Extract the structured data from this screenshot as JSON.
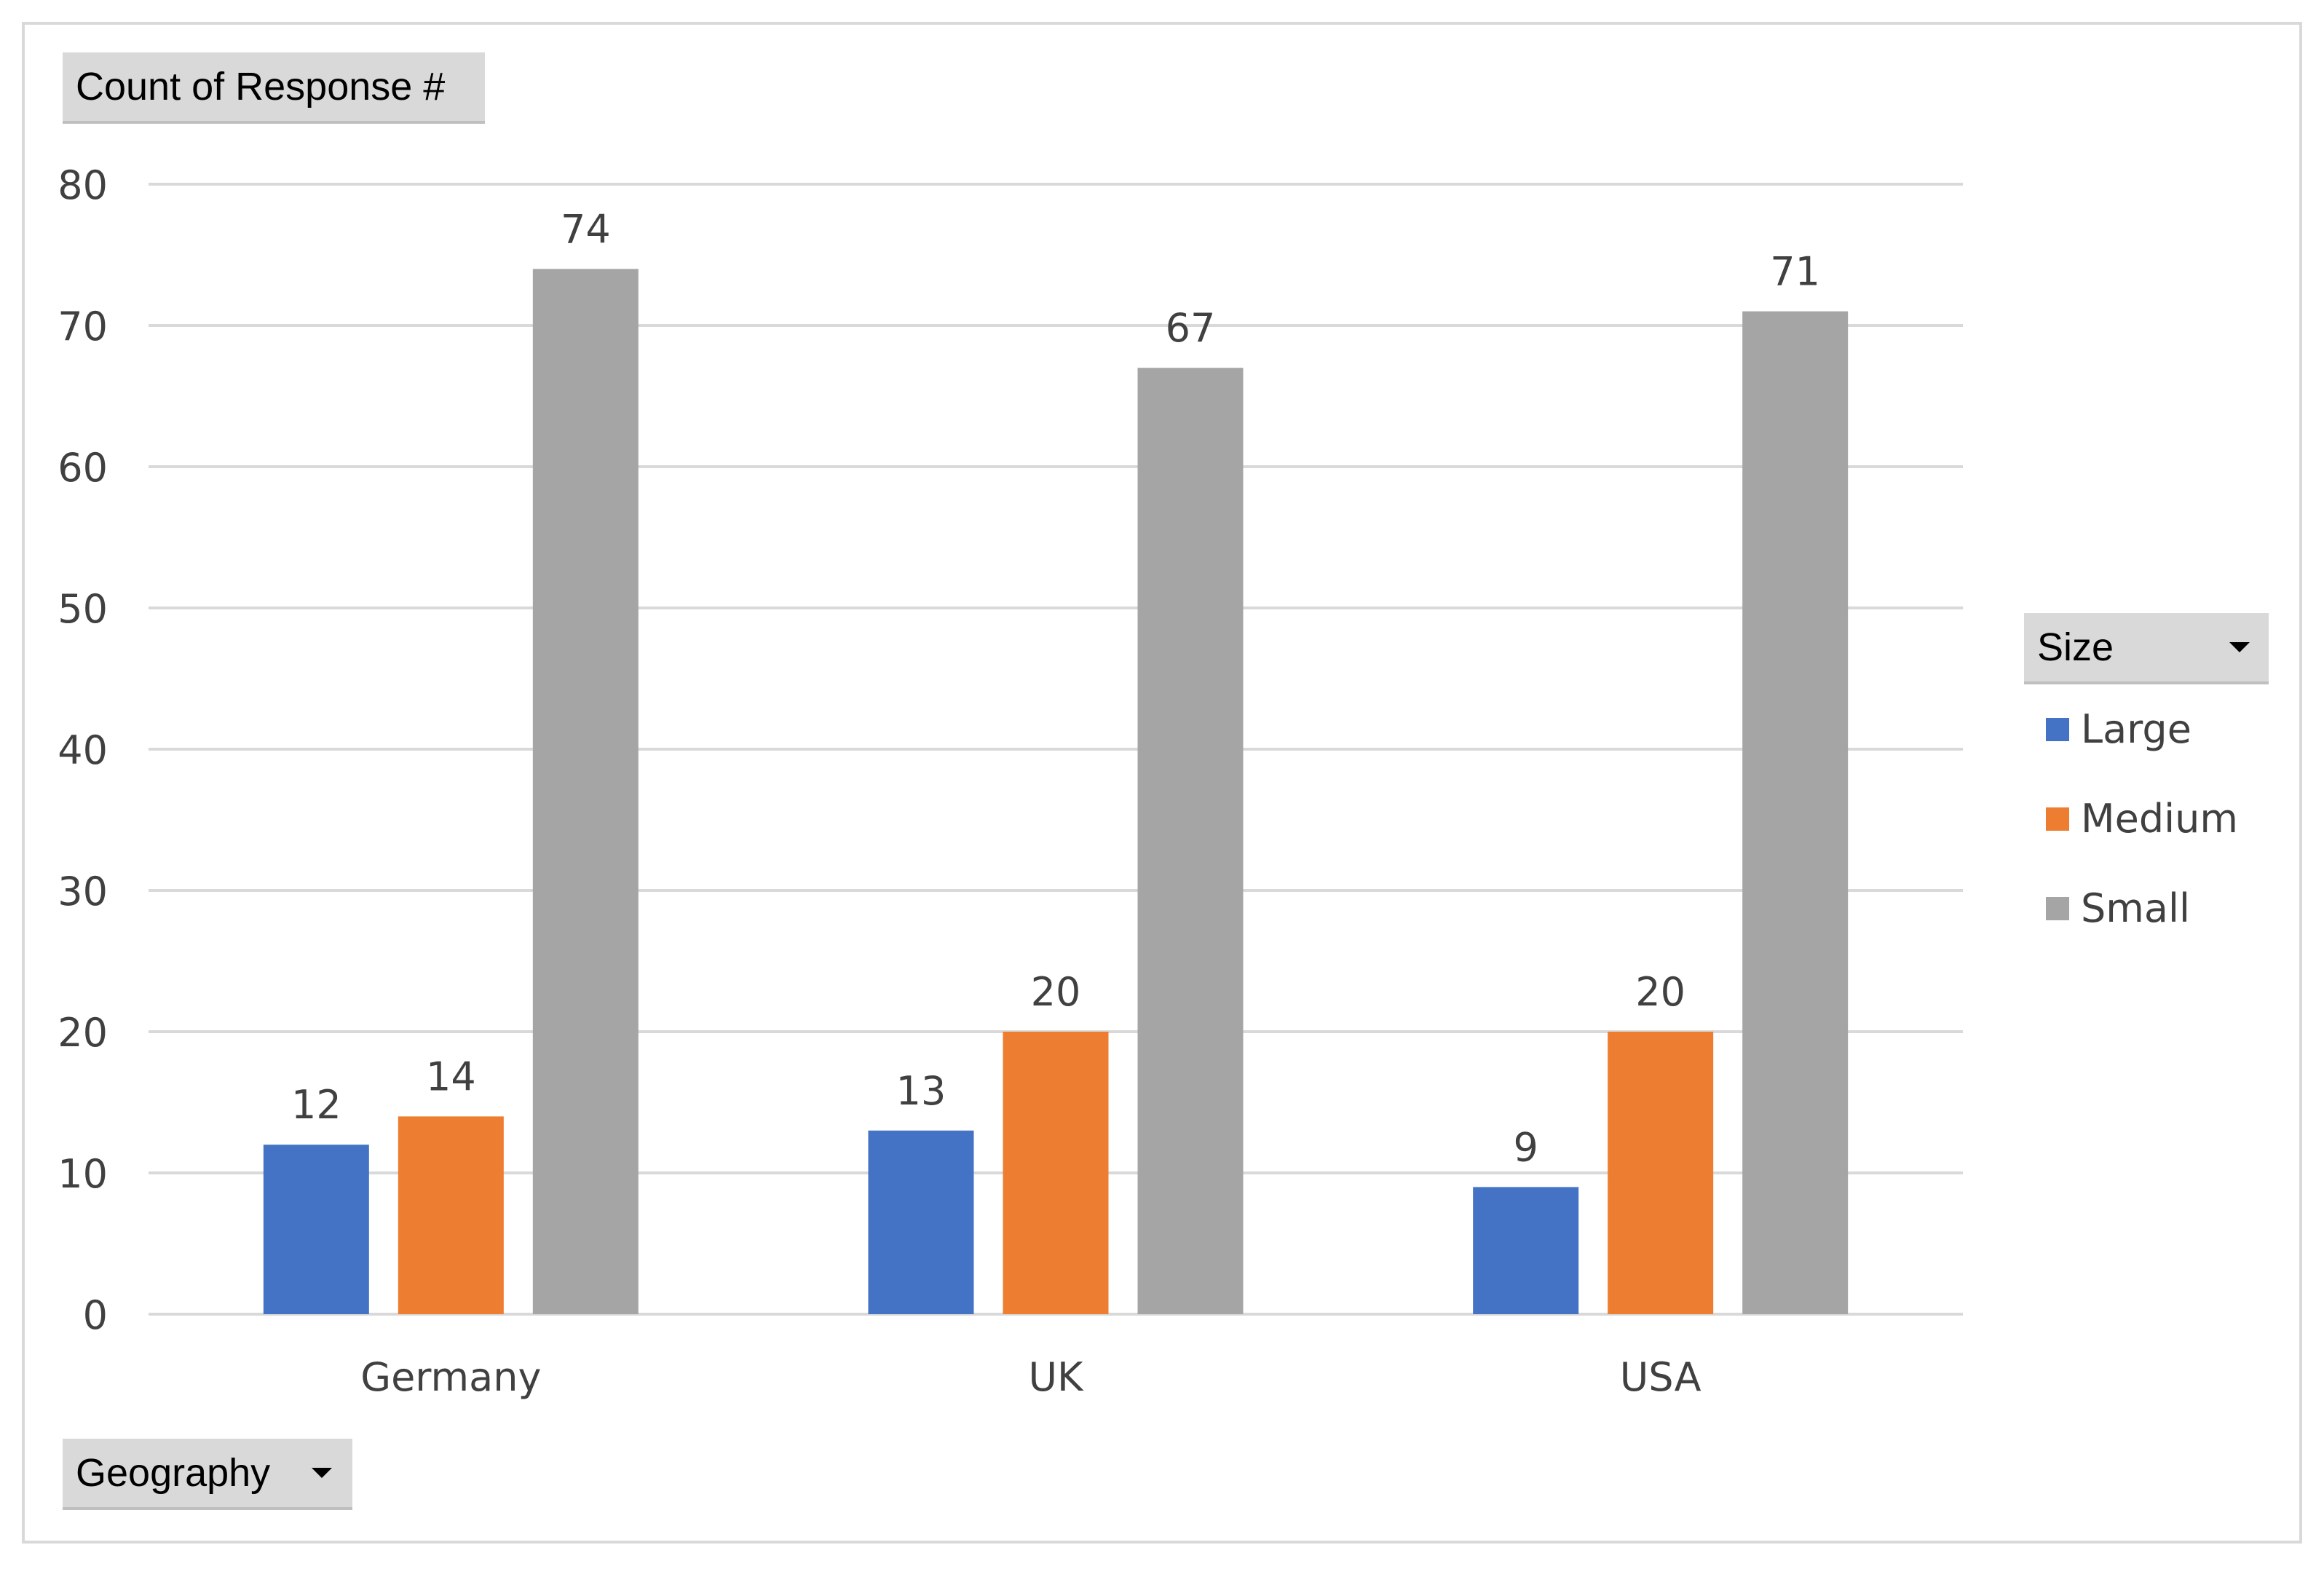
{
  "chart_data": {
    "type": "bar",
    "categories": [
      "Germany",
      "UK",
      "USA"
    ],
    "series": [
      {
        "name": "Large",
        "values": [
          12,
          13,
          9
        ],
        "color": "#4472C4"
      },
      {
        "name": "Medium",
        "values": [
          14,
          20,
          20
        ],
        "color": "#ED7D31"
      },
      {
        "name": "Small",
        "values": [
          74,
          67,
          71
        ],
        "color": "#A5A5A5"
      }
    ],
    "ylim": [
      0,
      80
    ],
    "yticks": [
      0,
      10,
      20,
      30,
      40,
      50,
      60,
      70,
      80
    ],
    "grid": true,
    "legend_position": "right",
    "data_labels": true
  },
  "pivot_fields": {
    "value_field": "Count of Response  #",
    "axis_field": "Geography",
    "legend_field": "Size"
  },
  "colors": {
    "gridline": "#d9d9d9",
    "label_text": "#404040",
    "field_button": "#d9d9d9"
  },
  "icons": {
    "axis_field_dropdown": "chevron-down-icon",
    "legend_field_dropdown": "chevron-down-icon"
  }
}
